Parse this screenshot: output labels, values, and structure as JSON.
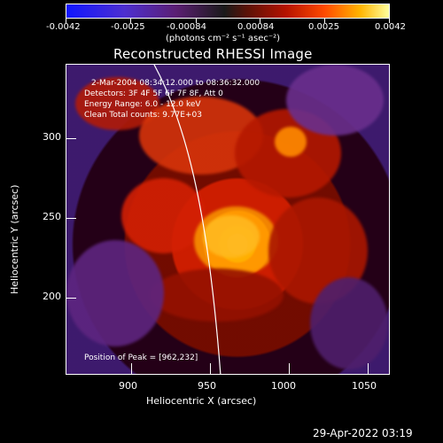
{
  "colorbar": {
    "tick_labels": [
      "-0.0042",
      "-0.0025",
      "-0.00084",
      "0.00084",
      "0.0025",
      "0.0042"
    ],
    "units": "(photons cm⁻² s⁻¹ asec⁻²)"
  },
  "plot": {
    "title": "Reconstructed RHESSI Image",
    "overlay": {
      "time_range": "2-Mar-2004 08:34:12.000 to 08:36:32.000",
      "detectors": "Detectors: 3F 4F 5F 6F 7F 8F, Att 0",
      "energy_range": "Energy Range: 6.0 - 12.0 keV",
      "clean_counts": "Clean     Total counts: 9.77E+03",
      "peak_position": "Position of Peak = [962,232]"
    },
    "x_axis": {
      "label": "Heliocentric X (arcsec)",
      "ticks": [
        "900",
        "950",
        "1000",
        "1050"
      ]
    },
    "y_axis": {
      "label": "Heliocentric Y (arcsec)",
      "ticks": [
        "300",
        "250",
        "200"
      ]
    }
  },
  "timestamp": "29-Apr-2022 03:19"
}
